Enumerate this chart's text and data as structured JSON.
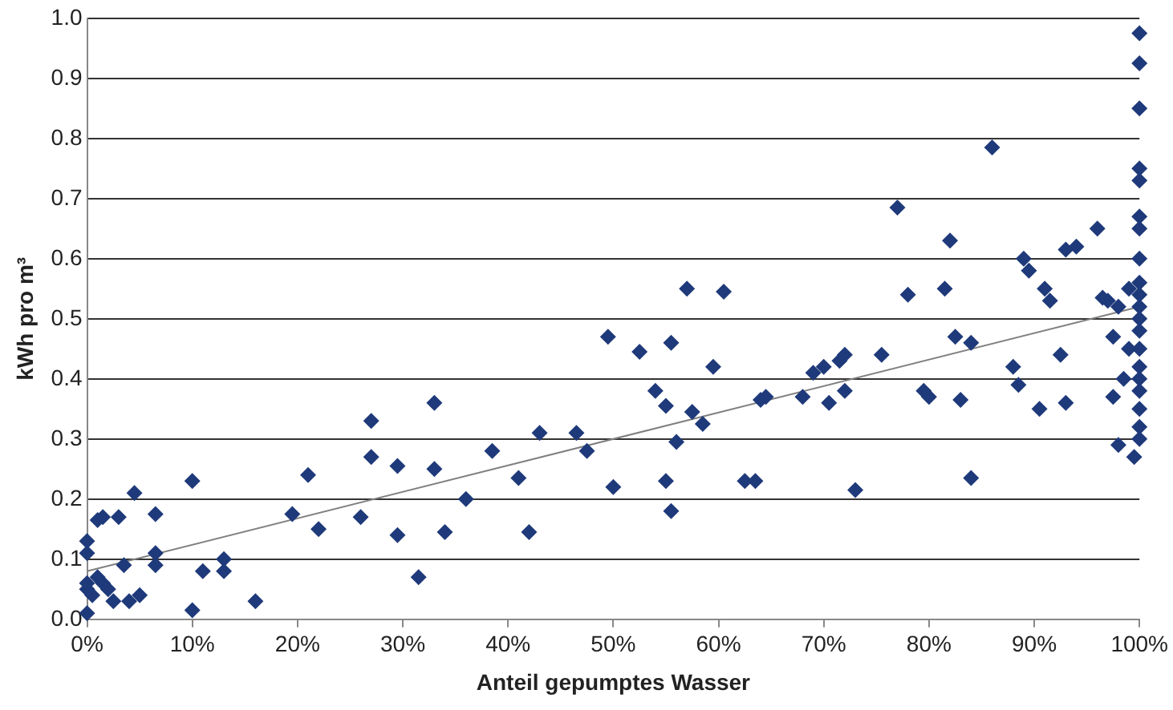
{
  "chart_data": {
    "type": "scatter",
    "xlabel": "Anteil gepumptes Wasser",
    "ylabel": "kWh pro m³",
    "marker": "diamond",
    "grid": "y",
    "legend": false,
    "xlim": [
      0,
      100
    ],
    "ylim": [
      0,
      1
    ],
    "xticks": [
      {
        "value": 0,
        "label": "0%"
      },
      {
        "value": 10,
        "label": "10%"
      },
      {
        "value": 20,
        "label": "20%"
      },
      {
        "value": 30,
        "label": "30%"
      },
      {
        "value": 40,
        "label": "40%"
      },
      {
        "value": 50,
        "label": "50%"
      },
      {
        "value": 60,
        "label": "60%"
      },
      {
        "value": 70,
        "label": "70%"
      },
      {
        "value": 80,
        "label": "80%"
      },
      {
        "value": 90,
        "label": "90%"
      },
      {
        "value": 100,
        "label": "100%"
      }
    ],
    "yticks": [
      {
        "value": 0,
        "label": "0.0"
      },
      {
        "value": 0.1,
        "label": "0.1"
      },
      {
        "value": 0.2,
        "label": "0.2"
      },
      {
        "value": 0.3,
        "label": "0.3"
      },
      {
        "value": 0.4,
        "label": "0.4"
      },
      {
        "value": 0.5,
        "label": "0.5"
      },
      {
        "value": 0.6,
        "label": "0.6"
      },
      {
        "value": 0.7,
        "label": "0.7"
      },
      {
        "value": 0.8,
        "label": "0.8"
      },
      {
        "value": 0.9,
        "label": "0.9"
      },
      {
        "value": 1,
        "label": "1.0"
      }
    ],
    "series": [
      {
        "color": "#1f3a7a",
        "x": [
          0,
          0,
          0,
          0.5,
          0,
          0,
          1,
          1.5,
          2,
          1,
          1.5,
          2.5,
          3,
          3.5,
          4,
          4.5,
          5,
          6.5,
          6.5,
          6.5,
          10,
          10,
          11,
          13,
          13,
          16,
          19.5,
          21,
          22,
          26,
          27,
          27,
          29.5,
          29.5,
          31.5,
          33,
          33,
          34,
          36,
          38.5,
          41,
          42,
          43,
          46.5,
          47.5,
          49.5,
          50,
          52.5,
          54,
          55,
          55,
          55.5,
          55.5,
          56,
          57,
          57.5,
          58.5,
          59.5,
          60.5,
          62.5,
          63.5,
          64,
          64.5,
          68,
          69,
          70,
          70.5,
          71.5,
          72,
          72,
          73,
          75.5,
          77,
          78,
          79.5,
          80,
          81.5,
          82,
          82.5,
          83,
          84,
          84,
          86,
          88,
          88.5,
          89,
          89.5,
          90.5,
          91,
          91.5,
          92.5,
          93,
          93,
          94,
          96,
          96.5,
          97,
          97.5,
          98,
          99.5,
          100,
          100,
          100,
          100,
          100,
          100,
          100,
          100,
          100,
          100,
          100,
          100,
          100,
          100,
          100,
          100,
          100,
          100,
          100,
          100,
          99,
          99,
          98.5,
          97.5,
          98
        ],
        "values": [
          0.01,
          0.05,
          0.06,
          0.04,
          0.11,
          0.13,
          0.07,
          0.06,
          0.05,
          0.165,
          0.17,
          0.03,
          0.17,
          0.09,
          0.03,
          0.21,
          0.04,
          0.11,
          0.09,
          0.175,
          0.23,
          0.015,
          0.08,
          0.08,
          0.1,
          0.03,
          0.175,
          0.24,
          0.15,
          0.17,
          0.33,
          0.27,
          0.255,
          0.14,
          0.07,
          0.36,
          0.25,
          0.145,
          0.2,
          0.28,
          0.235,
          0.145,
          0.31,
          0.31,
          0.28,
          0.47,
          0.22,
          0.445,
          0.38,
          0.355,
          0.23,
          0.46,
          0.18,
          0.295,
          0.55,
          0.345,
          0.325,
          0.42,
          0.545,
          0.23,
          0.23,
          0.365,
          0.37,
          0.37,
          0.41,
          0.42,
          0.36,
          0.43,
          0.38,
          0.44,
          0.215,
          0.44,
          0.685,
          0.54,
          0.38,
          0.37,
          0.55,
          0.63,
          0.47,
          0.365,
          0.46,
          0.235,
          0.785,
          0.42,
          0.39,
          0.6,
          0.58,
          0.35,
          0.55,
          0.53,
          0.44,
          0.615,
          0.36,
          0.62,
          0.65,
          0.535,
          0.53,
          0.37,
          0.29,
          0.27,
          0.975,
          0.925,
          0.85,
          0.75,
          0.73,
          0.67,
          0.65,
          0.6,
          0.56,
          0.54,
          0.52,
          0.5,
          0.48,
          0.45,
          0.42,
          0.4,
          0.38,
          0.35,
          0.32,
          0.3,
          0.55,
          0.45,
          0.4,
          0.47,
          0.52
        ]
      },
      {
        "type": "line",
        "color": "#808080",
        "marker": "none",
        "x": [
          0,
          100
        ],
        "values": [
          0.08,
          0.52
        ]
      }
    ]
  }
}
